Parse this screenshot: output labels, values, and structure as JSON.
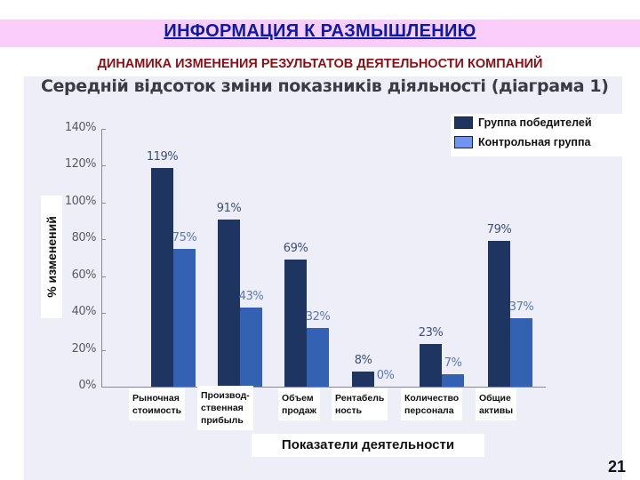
{
  "header": {
    "title": "ИНФОРМАЦИЯ К РАЗМЫШЛЕНИЮ",
    "subtitle": "ДИНАМИКА ИЗМЕНЕНИЯ РЕЗУЛЬТАТОВ ДЕЯТЕЛЬНОСТИ КОМПАНИЙ",
    "title_color": "#0b1aa8",
    "title_band_color": "#fbcdfb",
    "subtitle_color": "#8a0f14"
  },
  "chart_data": {
    "type": "bar",
    "title": "Середній відсоток зміни показників діяльності (діаграма 1)",
    "xlabel": "Показатели деятельности",
    "ylabel": "% изменений",
    "ylim": [
      0,
      140
    ],
    "yticks": [
      "0%",
      "20%",
      "40%",
      "60%",
      "80%",
      "100%",
      "120%",
      "140%"
    ],
    "grid": false,
    "legend_position": "top-right",
    "categories": [
      "Рыночная стоимость",
      "Производ-ственная прибыль",
      "Объем продаж",
      "Рентабельность",
      "Количество персонала",
      "Общие активы"
    ],
    "category_lines": [
      [
        "Рыночная",
        "стоимость"
      ],
      [
        "Производ-",
        "ственная",
        "прибыль"
      ],
      [
        "Объем",
        "продаж"
      ],
      [
        "Рентабель",
        "ность"
      ],
      [
        "Количество",
        "персонала"
      ],
      [
        "Общие",
        "активы"
      ]
    ],
    "series": [
      {
        "name": "Группа победителей",
        "color": "#1e3461",
        "values": [
          119,
          91,
          69,
          8,
          23,
          79
        ],
        "labels": [
          "119%",
          "91%",
          "69%",
          "8%",
          "23%",
          "79%"
        ]
      },
      {
        "name": "Контрольная группа",
        "color": "#3462b2",
        "values": [
          75,
          43,
          32,
          0,
          7,
          37
        ],
        "labels": [
          "75%",
          "43%",
          "32%",
          "0%",
          "7%",
          "37%"
        ]
      }
    ]
  },
  "legend": {
    "items": [
      {
        "label": "Группа победителей",
        "color": "#1e3461"
      },
      {
        "label": "Контрольная группа",
        "color": "#6f95ee"
      }
    ]
  },
  "footer": {
    "page_number": "21"
  }
}
